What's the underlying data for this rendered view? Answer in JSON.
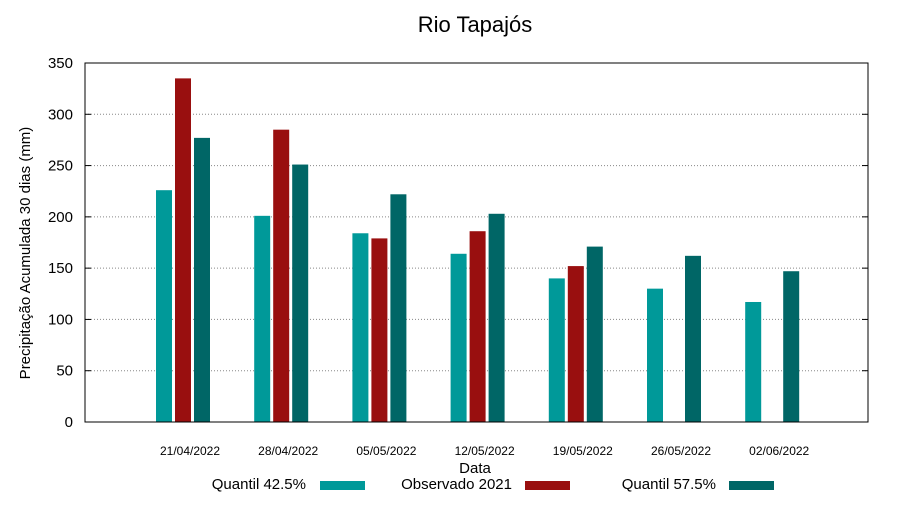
{
  "chart_data": {
    "type": "bar",
    "title": "Rio Tapajós",
    "xlabel": "Data",
    "ylabel": "Precipitação Acumulada 30 dias (mm)",
    "ylim": [
      0,
      350
    ],
    "yticks": [
      0,
      50,
      100,
      150,
      200,
      250,
      300,
      350
    ],
    "grid": true,
    "legend_position": "bottom",
    "categories": [
      "21/04/2022",
      "28/04/2022",
      "05/05/2022",
      "12/05/2022",
      "19/05/2022",
      "26/05/2022",
      "02/06/2022"
    ],
    "series": [
      {
        "name": "Quantil 42.5%",
        "color": "#009999",
        "values": [
          226,
          201,
          184,
          164,
          140,
          130,
          117
        ]
      },
      {
        "name": "Observado 2021",
        "color": "#990f0f",
        "values": [
          335,
          285,
          179,
          186,
          152,
          null,
          null
        ]
      },
      {
        "name": "Quantil 57.5%",
        "color": "#006666",
        "values": [
          277,
          251,
          222,
          203,
          171,
          162,
          147
        ]
      }
    ]
  }
}
